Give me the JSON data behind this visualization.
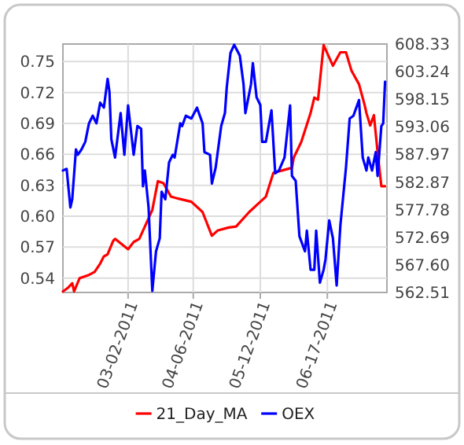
{
  "chart_data": {
    "type": "line",
    "grid": true,
    "legend": "bottom",
    "marker": "none",
    "line_style": "solid",
    "xlim": [
      "2011-01-26",
      "2011-07-19"
    ],
    "xticks": [
      {
        "value": "2011-03-02",
        "label": "03-02-2011"
      },
      {
        "value": "2011-04-06",
        "label": "04-06-2011"
      },
      {
        "value": "2011-05-12",
        "label": "05-12-2011"
      },
      {
        "value": "2011-06-17",
        "label": "06-17-2011"
      }
    ],
    "ylim": [
      0.526,
      0.767
    ],
    "yticks": [
      0.54,
      0.57,
      {
        "value": 0.6,
        "label": "0.60"
      },
      0.63,
      0.66,
      0.69,
      0.72,
      0.75
    ],
    "y2lim": [
      562.51,
      608.33
    ],
    "y2ticks": [
      562.51,
      {
        "value": 567.6,
        "label": "567.60"
      },
      572.69,
      577.78,
      582.87,
      587.97,
      593.06,
      598.15,
      603.24,
      608.33
    ],
    "series": [
      {
        "name": "21_Day_MA",
        "color": "#ff0000",
        "x": [
          "2011-01-26",
          "2011-01-29",
          "2011-01-31",
          "2011-02-01",
          "2011-02-04",
          "2011-02-09",
          "2011-02-12",
          "2011-02-15",
          "2011-02-17",
          "2011-02-19",
          "2011-02-22",
          "2011-02-23",
          "2011-03-02",
          "2011-03-05",
          "2011-03-08",
          "2011-03-12",
          "2011-03-15",
          "2011-03-18",
          "2011-03-21",
          "2011-03-25",
          "2011-03-29",
          "2011-04-05",
          "2011-04-11",
          "2011-04-16",
          "2011-04-19",
          "2011-04-25",
          "2011-04-29",
          "2011-05-06",
          "2011-05-12",
          "2011-05-15",
          "2011-05-19",
          "2011-05-29",
          "2011-05-30",
          "2011-06-03",
          "2011-06-08",
          "2011-06-10",
          "2011-06-12",
          "2011-06-15",
          "2011-06-20",
          "2011-06-24",
          "2011-06-27",
          "2011-06-30",
          "2011-07-04",
          "2011-07-07",
          "2011-07-08",
          "2011-07-10",
          "2011-07-12",
          "2011-07-14",
          "2011-07-16",
          "2011-07-18"
        ],
        "values": [
          0.527,
          0.531,
          0.535,
          0.527,
          0.54,
          0.543,
          0.546,
          0.554,
          0.561,
          0.563,
          0.576,
          0.578,
          0.568,
          0.575,
          0.578,
          0.594,
          0.606,
          0.634,
          0.632,
          0.619,
          0.617,
          0.614,
          0.604,
          0.581,
          0.586,
          0.589,
          0.59,
          0.604,
          0.614,
          0.619,
          0.642,
          0.647,
          0.657,
          0.672,
          0.7,
          0.715,
          0.713,
          0.766,
          0.746,
          0.759,
          0.759,
          0.741,
          0.728,
          0.708,
          0.7,
          0.688,
          0.698,
          0.662,
          0.629,
          0.629
        ]
      },
      {
        "name": "OEX",
        "color": "#0000ff",
        "axis": "y2",
        "x": [
          "2011-01-26",
          "2011-01-28",
          "2011-01-30",
          "2011-01-31",
          "2011-02-02",
          "2011-02-03",
          "2011-02-05",
          "2011-02-07",
          "2011-02-09",
          "2011-02-11",
          "2011-02-13",
          "2011-02-15",
          "2011-02-17",
          "2011-02-19",
          "2011-02-20",
          "2011-02-21",
          "2011-02-23",
          "2011-02-26",
          "2011-02-28",
          "2011-03-02",
          "2011-03-05",
          "2011-03-07",
          "2011-03-09",
          "2011-03-10",
          "2011-03-11",
          "2011-03-13",
          "2011-03-15",
          "2011-03-17",
          "2011-03-19",
          "2011-03-20",
          "2011-03-22",
          "2011-03-24",
          "2011-03-26",
          "2011-03-27",
          "2011-03-30",
          "2011-03-31",
          "2011-04-02",
          "2011-04-05",
          "2011-04-08",
          "2011-04-11",
          "2011-04-12",
          "2011-04-15",
          "2011-04-16",
          "2011-04-18",
          "2011-04-21",
          "2011-04-23",
          "2011-04-24",
          "2011-04-26",
          "2011-04-28",
          "2011-05-01",
          "2011-05-03",
          "2011-05-04",
          "2011-05-07",
          "2011-05-08",
          "2011-05-10",
          "2011-05-12",
          "2011-05-13",
          "2011-05-15",
          "2011-05-18",
          "2011-05-20",
          "2011-05-22",
          "2011-05-25",
          "2011-05-28",
          "2011-05-29",
          "2011-05-31",
          "2011-06-02",
          "2011-06-05",
          "2011-06-06",
          "2011-06-08",
          "2011-06-10",
          "2011-06-11",
          "2011-06-13",
          "2011-06-15",
          "2011-06-16",
          "2011-06-18",
          "2011-06-20",
          "2011-06-22",
          "2011-06-24",
          "2011-06-27",
          "2011-06-29",
          "2011-07-01",
          "2011-07-04",
          "2011-07-06",
          "2011-07-08",
          "2011-07-09",
          "2011-07-11",
          "2011-07-13",
          "2011-07-14",
          "2011-07-16",
          "2011-07-17",
          "2011-07-18"
        ],
        "values": [
          585.0,
          585.3,
          578.2,
          579.7,
          588.9,
          587.9,
          588.9,
          590.3,
          593.7,
          595.1,
          593.7,
          597.5,
          596.6,
          601.9,
          599.5,
          590.8,
          587.4,
          595.6,
          587.9,
          597.0,
          587.9,
          593.2,
          592.7,
          582.1,
          585.0,
          578.2,
          562.8,
          570.1,
          572.5,
          581.1,
          579.7,
          586.5,
          587.9,
          587.4,
          593.7,
          593.2,
          595.1,
          594.6,
          596.6,
          593.7,
          588.4,
          587.9,
          582.6,
          585.5,
          593.2,
          595.6,
          600.4,
          606.7,
          608.2,
          606.2,
          600.9,
          595.6,
          600.9,
          604.8,
          598.5,
          597.1,
          590.3,
          590.3,
          596.1,
          584.5,
          585.0,
          587.4,
          597.0,
          584.0,
          583.1,
          572.9,
          570.1,
          573.9,
          566.7,
          566.7,
          573.9,
          564.3,
          566.7,
          568.6,
          575.8,
          572.5,
          563.8,
          574.9,
          585.5,
          594.6,
          595.1,
          598.0,
          587.4,
          585.0,
          587.4,
          585.0,
          588.4,
          584.0,
          593.2,
          593.7,
          601.4
        ]
      }
    ]
  }
}
